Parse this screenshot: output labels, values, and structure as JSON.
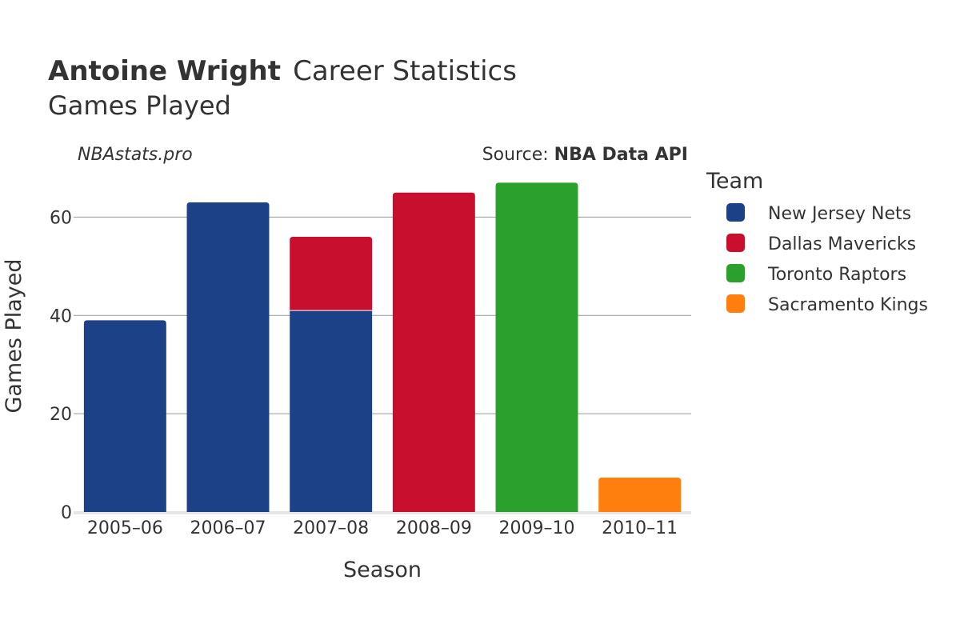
{
  "header": {
    "player_name": "Antoine Wright",
    "title_rest": "Career Statistics",
    "subtitle": "Games Played",
    "site": "NBAstats.pro",
    "source_prefix": "Source: ",
    "source_name": "NBA Data API"
  },
  "legend": {
    "title": "Team",
    "placement": "right"
  },
  "chart_data": {
    "type": "bar",
    "stacked": true,
    "categories": [
      "2005–06",
      "2006–07",
      "2007–08",
      "2008–09",
      "2009–10",
      "2010–11"
    ],
    "series": [
      {
        "name": "New Jersey Nets",
        "color": "#1c4187",
        "values": [
          39,
          63,
          41,
          0,
          0,
          0
        ]
      },
      {
        "name": "Dallas Mavericks",
        "color": "#c8102e",
        "values": [
          0,
          0,
          15,
          65,
          0,
          0
        ]
      },
      {
        "name": "Toronto Raptors",
        "color": "#2ca02c",
        "values": [
          0,
          0,
          0,
          0,
          67,
          0
        ]
      },
      {
        "name": "Sacramento Kings",
        "color": "#ff7f0e",
        "values": [
          0,
          0,
          0,
          0,
          0,
          7
        ]
      }
    ],
    "xlabel": "Season",
    "ylabel": "Games Played",
    "ylim": [
      0,
      70
    ],
    "yticks": [
      0,
      20,
      40,
      60
    ],
    "grid": true
  }
}
